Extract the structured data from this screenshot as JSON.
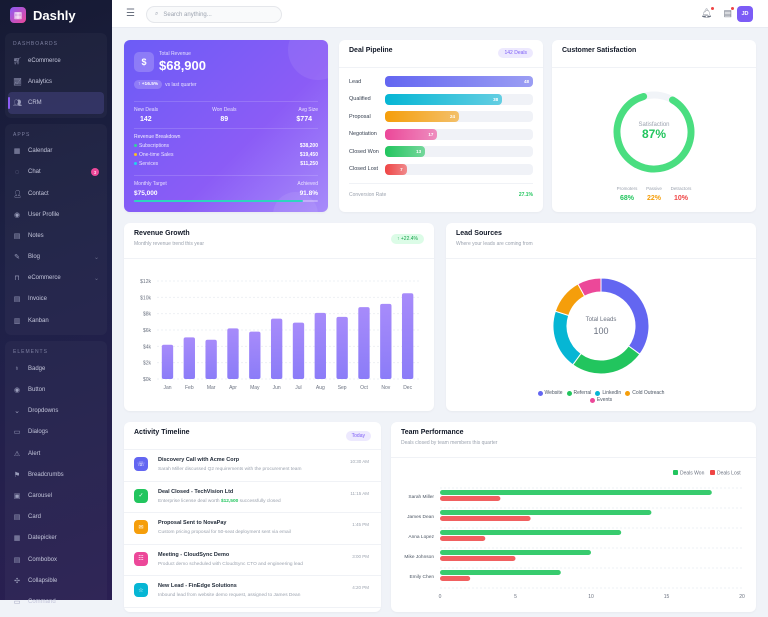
{
  "app": {
    "name": "Dashly",
    "search_placeholder": "Search anything...",
    "user_initials": "JD"
  },
  "sidebar": {
    "groups": [
      {
        "title": "DASHBOARDS",
        "items": [
          {
            "label": "eCommerce",
            "icon": "cart-icon"
          },
          {
            "label": "Analytics",
            "icon": "chart-line-icon"
          },
          {
            "label": "CRM",
            "icon": "users-icon",
            "active": true
          }
        ]
      },
      {
        "title": "APPS",
        "items": [
          {
            "label": "Calendar",
            "icon": "calendar-icon"
          },
          {
            "label": "Chat",
            "icon": "chat-icon",
            "badge": "3"
          },
          {
            "label": "Contact",
            "icon": "contact-icon"
          },
          {
            "label": "User Profile",
            "icon": "user-circle-icon"
          },
          {
            "label": "Notes",
            "icon": "notes-icon"
          },
          {
            "label": "Blog",
            "icon": "edit-icon",
            "chevron": true
          },
          {
            "label": "eCommerce",
            "icon": "bag-icon",
            "chevron": true
          },
          {
            "label": "Invoice",
            "icon": "invoice-icon"
          },
          {
            "label": "Kanban",
            "icon": "kanban-icon"
          }
        ]
      },
      {
        "title": "ELEMENTS",
        "items": [
          {
            "label": "Badge",
            "icon": "badge-icon"
          },
          {
            "label": "Button",
            "icon": "button-icon"
          },
          {
            "label": "Dropdowns",
            "icon": "dropdown-icon"
          },
          {
            "label": "Dialogs",
            "icon": "dialog-icon"
          },
          {
            "label": "Alert",
            "icon": "alert-icon"
          },
          {
            "label": "Breadcrumbs",
            "icon": "signpost-icon"
          },
          {
            "label": "Carousel",
            "icon": "carousel-icon"
          },
          {
            "label": "Card",
            "icon": "card-icon"
          },
          {
            "label": "Datepicker",
            "icon": "datepicker-icon"
          },
          {
            "label": "Combobox",
            "icon": "combobox-icon"
          },
          {
            "label": "Collapsible",
            "icon": "collapsible-icon"
          },
          {
            "label": "Command",
            "icon": "command-icon"
          }
        ]
      }
    ]
  },
  "revenue": {
    "label": "Total Revenue",
    "value": "$68,900",
    "change": "↑ +16.5%",
    "change_note": "vs last quarter",
    "stats": [
      {
        "label": "New Deals",
        "value": "142"
      },
      {
        "label": "Won Deals",
        "value": "89"
      },
      {
        "label": "Avg Size",
        "value": "$774"
      }
    ],
    "breakdown_title": "Revenue Breakdown",
    "breakdown": [
      {
        "label": "Subscriptions",
        "value": "$38,200",
        "color": "#34d399"
      },
      {
        "label": "One-time Sales",
        "value": "$19,450",
        "color": "#fbbf24"
      },
      {
        "label": "Services",
        "value": "$11,250",
        "color": "#22d3ee"
      }
    ],
    "target_label": "Monthly Target",
    "target_value": "$75,000",
    "achieved_label": "Achieved",
    "achieved_value": "91.8%",
    "achieved_pct": 91.8
  },
  "pipeline": {
    "title": "Deal Pipeline",
    "badge": "142 Deals",
    "max": 48,
    "stages": [
      {
        "label": "Lead",
        "value": 48,
        "color": "#6366f1"
      },
      {
        "label": "Qualified",
        "value": 38,
        "color": "#06b6d4"
      },
      {
        "label": "Proposal",
        "value": 24,
        "color": "#f59e0b"
      },
      {
        "label": "Negotiation",
        "value": 17,
        "color": "#ec4899"
      },
      {
        "label": "Closed Won",
        "value": 13,
        "color": "#22c55e"
      },
      {
        "label": "Closed Lost",
        "value": 7,
        "color": "#ef4444"
      }
    ],
    "conversion_label": "Conversion Rate",
    "conversion_value": "27.1%"
  },
  "satisfaction": {
    "title": "Customer Satisfaction",
    "label": "Satisfaction",
    "value": "87%",
    "pct": 87,
    "breakdown": [
      {
        "label": "Promoters",
        "value": "68%",
        "color": "#22c55e"
      },
      {
        "label": "Passive",
        "value": "22%",
        "color": "#f59e0b"
      },
      {
        "label": "Detractors",
        "value": "10%",
        "color": "#ef4444"
      }
    ]
  },
  "revenue_growth": {
    "title": "Revenue Growth",
    "subtitle": "Monthly revenue trend this year",
    "badge": "↑ +22.4%"
  },
  "lead_sources": {
    "title": "Lead Sources",
    "subtitle": "Where your leads are coming from",
    "center_label": "Total Leads",
    "center_value": "100"
  },
  "activity": {
    "title": "Activity Timeline",
    "badge": "Today",
    "items": [
      {
        "title": "Discovery Call with Acme Corp",
        "desc": "Sarah Miller discussed Q2 requirements with the procurement team",
        "time": "10:30 AM",
        "color": "#6366f1",
        "icon": "phone-icon"
      },
      {
        "title": "Deal Closed - TechVision Ltd",
        "desc_pre": "Enterprise license deal worth ",
        "desc_highlight": "$12,500",
        "desc_post": " successfully closed",
        "time": "11:15 AM",
        "color": "#22c55e",
        "icon": "check-circle-icon"
      },
      {
        "title": "Proposal Sent to NovaPay",
        "desc": "Custom pricing proposal for 50-seat deployment sent via email",
        "time": "1:45 PM",
        "color": "#f59e0b",
        "icon": "mail-icon"
      },
      {
        "title": "Meeting - CloudSync Demo",
        "desc": "Product demo scheduled with CloudSync CTO and engineering lead",
        "time": "3:00 PM",
        "color": "#ec4899",
        "icon": "meeting-icon"
      },
      {
        "title": "New Lead - FinEdge Solutions",
        "desc": "Inbound lead from website demo request, assigned to James Dean",
        "time": "4:20 PM",
        "color": "#06b6d4",
        "icon": "star-icon"
      }
    ]
  },
  "team": {
    "title": "Team Performance",
    "subtitle": "Deals closed by team members this quarter"
  },
  "chart_data": [
    {
      "type": "bar",
      "categories": [
        "Jan",
        "Feb",
        "Mar",
        "Apr",
        "May",
        "Jun",
        "Jul",
        "Aug",
        "Sep",
        "Oct",
        "Nov",
        "Dec"
      ],
      "values": [
        4.2,
        5.1,
        4.8,
        6.2,
        5.8,
        7.4,
        6.9,
        8.1,
        7.6,
        8.8,
        9.2,
        10.5
      ],
      "ylim": [
        0,
        12
      ],
      "yticks": [
        "$0k",
        "$2k",
        "$4k",
        "$6k",
        "$8k",
        "$10k",
        "$12k"
      ],
      "unit": "$k",
      "color": "#8b7cf8",
      "grid": true
    },
    {
      "type": "pie",
      "donut": true,
      "categories": [
        "Website",
        "Referral",
        "LinkedIn",
        "Cold Outreach",
        "Events"
      ],
      "values": [
        35,
        25,
        20,
        12,
        8
      ],
      "colors": [
        "#6366f1",
        "#22c55e",
        "#06b6d4",
        "#f59e0b",
        "#ec4899"
      ],
      "legend": "bottom"
    },
    {
      "type": "bar",
      "orientation": "horizontal",
      "categories": [
        "Sarah Miller",
        "James Dean",
        "Anna Lopez",
        "Mike Johnson",
        "Emily Chen"
      ],
      "series": [
        {
          "name": "Deals Won",
          "values": [
            18,
            14,
            12,
            10,
            8
          ],
          "color": "#22c55e"
        },
        {
          "name": "Deals Lost",
          "values": [
            4,
            6,
            3,
            5,
            2
          ],
          "color": "#ef4444"
        }
      ],
      "xlim": [
        0,
        20
      ],
      "xticks": [
        "0",
        "5",
        "10",
        "15",
        "20"
      ],
      "legend": "top-right",
      "grid": true
    }
  ]
}
